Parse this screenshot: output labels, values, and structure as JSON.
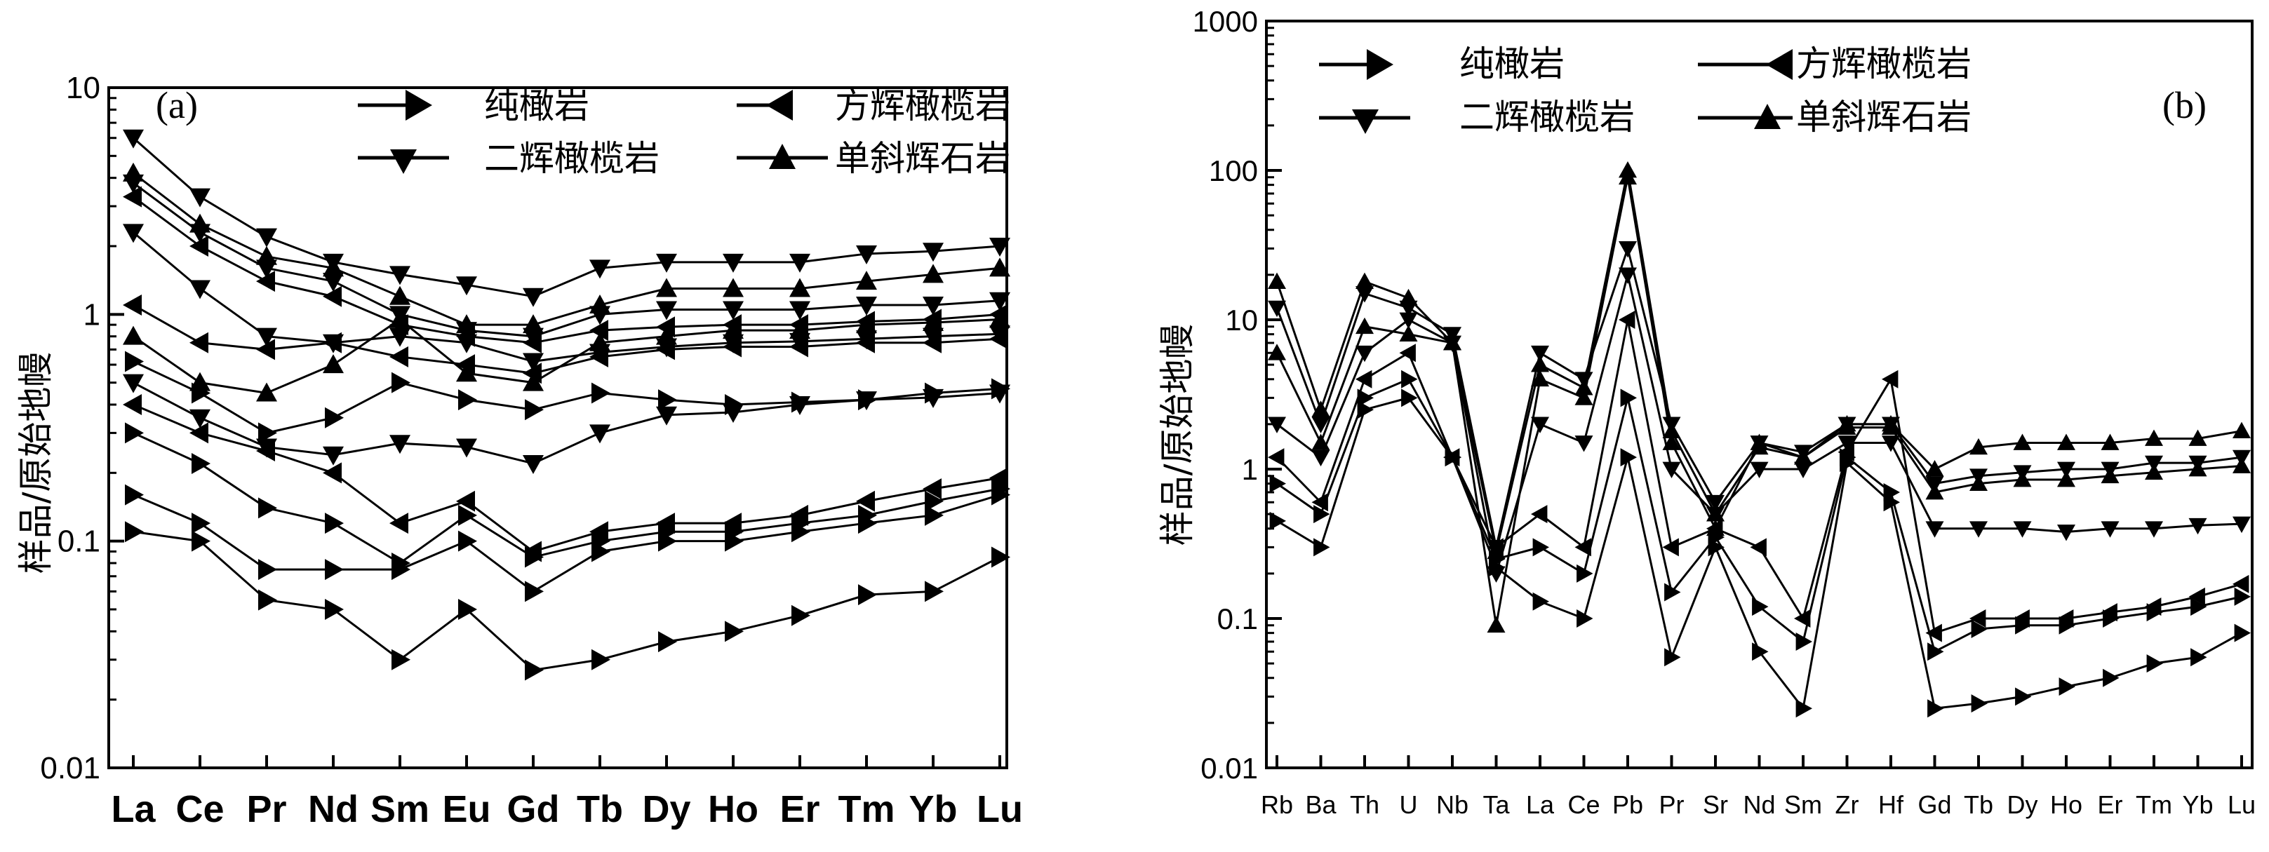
{
  "chart_data": [
    {
      "panel_label": "(a)",
      "type": "line",
      "ylabel": "样品/原始地幔",
      "yscale": "log",
      "ylim": [
        0.01,
        10
      ],
      "ytick_labels": [
        "10",
        "1",
        "0.1",
        "0.01"
      ],
      "categories": [
        "La",
        "Ce",
        "Pr",
        "Nd",
        "Sm",
        "Eu",
        "Gd",
        "Tb",
        "Dy",
        "Ho",
        "Er",
        "Tm",
        "Yb",
        "Lu"
      ],
      "legend": [
        {
          "label": "纯橄岩",
          "marker": "triangle-right"
        },
        {
          "label": "方辉橄榄岩",
          "marker": "triangle-left"
        },
        {
          "label": "二辉橄榄岩",
          "marker": "triangle-down"
        },
        {
          "label": "单斜辉石岩",
          "marker": "triangle-up"
        }
      ],
      "series": [
        {
          "marker": "triangle-right",
          "values": [
            0.11,
            0.1,
            0.055,
            0.05,
            0.03,
            0.05,
            0.027,
            0.03,
            0.036,
            0.04,
            0.047,
            0.058,
            0.06,
            0.085
          ]
        },
        {
          "marker": "triangle-right",
          "values": [
            0.16,
            0.12,
            0.075,
            0.075,
            0.075,
            0.1,
            0.06,
            0.09,
            0.1,
            0.1,
            0.11,
            0.12,
            0.13,
            0.16
          ]
        },
        {
          "marker": "triangle-right",
          "values": [
            0.3,
            0.22,
            0.14,
            0.12,
            0.08,
            0.13,
            0.085,
            0.1,
            0.11,
            0.11,
            0.12,
            0.13,
            0.15,
            0.17
          ]
        },
        {
          "marker": "triangle-left",
          "values": [
            0.4,
            0.3,
            0.25,
            0.2,
            0.12,
            0.15,
            0.09,
            0.11,
            0.12,
            0.12,
            0.13,
            0.15,
            0.17,
            0.19
          ]
        },
        {
          "marker": "triangle-down",
          "values": [
            0.5,
            0.35,
            0.26,
            0.24,
            0.27,
            0.26,
            0.22,
            0.3,
            0.36,
            0.37,
            0.4,
            0.42,
            0.43,
            0.45
          ]
        },
        {
          "marker": "triangle-right",
          "values": [
            0.62,
            0.45,
            0.3,
            0.35,
            0.5,
            0.42,
            0.38,
            0.45,
            0.42,
            0.4,
            0.41,
            0.42,
            0.45,
            0.47
          ]
        },
        {
          "marker": "triangle-up",
          "values": [
            0.8,
            0.5,
            0.45,
            0.6,
            0.95,
            0.55,
            0.5,
            0.75,
            0.8,
            0.85,
            0.85,
            0.9,
            0.92,
            0.95
          ]
        },
        {
          "marker": "triangle-left",
          "values": [
            1.1,
            0.75,
            0.7,
            0.75,
            0.65,
            0.6,
            0.55,
            0.65,
            0.7,
            0.72,
            0.72,
            0.75,
            0.75,
            0.78
          ]
        },
        {
          "marker": "triangle-down",
          "values": [
            2.3,
            1.3,
            0.8,
            0.75,
            0.8,
            0.75,
            0.62,
            0.68,
            0.72,
            0.75,
            0.76,
            0.78,
            0.8,
            0.82
          ]
        },
        {
          "marker": "triangle-left",
          "values": [
            3.3,
            2.0,
            1.4,
            1.2,
            0.9,
            0.8,
            0.75,
            0.85,
            0.88,
            0.9,
            0.9,
            0.93,
            0.95,
            1.0
          ]
        },
        {
          "marker": "triangle-down",
          "values": [
            3.8,
            2.3,
            1.6,
            1.4,
            1.0,
            0.85,
            0.8,
            1.0,
            1.05,
            1.05,
            1.05,
            1.1,
            1.1,
            1.15
          ]
        },
        {
          "marker": "triangle-up",
          "values": [
            4.2,
            2.5,
            1.8,
            1.6,
            1.2,
            0.9,
            0.9,
            1.1,
            1.3,
            1.3,
            1.3,
            1.4,
            1.5,
            1.6
          ]
        },
        {
          "marker": "triangle-down",
          "values": [
            6.0,
            3.3,
            2.2,
            1.7,
            1.5,
            1.35,
            1.2,
            1.6,
            1.7,
            1.7,
            1.7,
            1.85,
            1.9,
            2.0
          ]
        }
      ]
    },
    {
      "panel_label": "(b)",
      "type": "line",
      "ylabel": "样品/原始地幔",
      "yscale": "log",
      "ylim": [
        0.01,
        1000
      ],
      "ytick_labels": [
        "1000",
        "100",
        "10",
        "1",
        "0.1",
        "0.01"
      ],
      "categories": [
        "Rb",
        "Ba",
        "Th",
        "U",
        "Nb",
        "Ta",
        "La",
        "Ce",
        "Pb",
        "Pr",
        "Sr",
        "Nd",
        "Sm",
        "Zr",
        "Hf",
        "Gd",
        "Tb",
        "Dy",
        "Ho",
        "Er",
        "Tm",
        "Yb",
        "Lu"
      ],
      "legend": [
        {
          "label": "纯橄岩",
          "marker": "triangle-right"
        },
        {
          "label": "方辉橄榄岩",
          "marker": "triangle-left"
        },
        {
          "label": "二辉橄榄岩",
          "marker": "triangle-down"
        },
        {
          "label": "单斜辉石岩",
          "marker": "triangle-up"
        }
      ],
      "series": [
        {
          "marker": "triangle-right",
          "values": [
            0.45,
            0.3,
            2.5,
            3.0,
            1.2,
            0.22,
            0.13,
            0.1,
            1.2,
            0.055,
            0.3,
            0.06,
            0.025,
            1.1,
            0.6,
            0.025,
            0.027,
            0.03,
            0.035,
            0.04,
            0.05,
            0.055,
            0.08
          ]
        },
        {
          "marker": "triangle-right",
          "values": [
            0.8,
            0.5,
            3.0,
            4.0,
            1.2,
            0.25,
            0.3,
            0.2,
            3.0,
            0.15,
            0.35,
            0.12,
            0.07,
            1.2,
            0.7,
            0.06,
            0.085,
            0.09,
            0.09,
            0.1,
            0.11,
            0.12,
            0.14
          ]
        },
        {
          "marker": "triangle-left",
          "values": [
            1.2,
            0.6,
            4.0,
            6.0,
            1.2,
            0.3,
            0.5,
            0.3,
            10,
            0.3,
            0.4,
            0.3,
            0.1,
            1.3,
            4.0,
            0.08,
            0.1,
            0.1,
            0.1,
            0.11,
            0.12,
            0.14,
            0.17
          ]
        },
        {
          "marker": "triangle-down",
          "values": [
            2.0,
            1.2,
            6.0,
            10,
            7,
            0.2,
            2.0,
            1.5,
            20,
            1.0,
            0.5,
            1.0,
            1.0,
            1.5,
            1.5,
            0.4,
            0.4,
            0.4,
            0.38,
            0.4,
            0.4,
            0.42,
            0.43
          ]
        },
        {
          "marker": "triangle-up",
          "values": [
            6,
            1.5,
            9,
            8,
            7,
            0.09,
            4,
            3,
            90,
            1.5,
            0.4,
            1.5,
            1.2,
            2.0,
            2.0,
            1.0,
            1.4,
            1.5,
            1.5,
            1.5,
            1.6,
            1.6,
            1.8
          ]
        },
        {
          "marker": "triangle-down",
          "values": [
            12,
            2.0,
            15,
            12,
            8,
            0.3,
            6,
            4,
            30,
            2.0,
            0.6,
            1.5,
            1.3,
            2.0,
            2.0,
            0.8,
            0.9,
            0.95,
            1.0,
            1.0,
            1.1,
            1.1,
            1.2
          ]
        },
        {
          "marker": "triangle-up",
          "values": [
            18,
            2.5,
            18,
            14,
            7,
            0.28,
            5,
            3.5,
            100,
            1.8,
            0.5,
            1.4,
            1.2,
            1.9,
            1.9,
            0.7,
            0.8,
            0.85,
            0.85,
            0.9,
            0.95,
            1.0,
            1.05
          ]
        }
      ]
    }
  ]
}
